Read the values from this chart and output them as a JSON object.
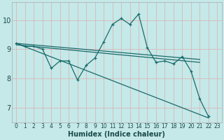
{
  "xlabel": "Humidex (Indice chaleur)",
  "bg_color": "#c5e8e8",
  "grid_color": "#d8b8b8",
  "line_color": "#1a6b6b",
  "xlim": [
    -0.5,
    23.5
  ],
  "ylim": [
    6.5,
    10.6
  ],
  "yticks": [
    7,
    8,
    9,
    10
  ],
  "xticks": [
    0,
    1,
    2,
    3,
    4,
    5,
    6,
    7,
    8,
    9,
    10,
    11,
    12,
    13,
    14,
    15,
    16,
    17,
    18,
    19,
    20,
    21,
    22,
    23
  ],
  "lines": [
    {
      "x": [
        0,
        1,
        2,
        3,
        4,
        5,
        6,
        7,
        8,
        9,
        10,
        11,
        12,
        13,
        14,
        15,
        16,
        17,
        18,
        19,
        20,
        21,
        22
      ],
      "y": [
        9.2,
        9.1,
        9.1,
        9.0,
        8.35,
        8.6,
        8.6,
        7.95,
        8.45,
        8.7,
        9.25,
        9.85,
        10.05,
        9.85,
        10.2,
        9.05,
        8.55,
        8.6,
        8.5,
        8.75,
        8.25,
        7.3,
        6.7
      ],
      "marker": true
    },
    {
      "x": [
        0,
        21
      ],
      "y": [
        9.2,
        8.65
      ],
      "marker": false
    },
    {
      "x": [
        0,
        21
      ],
      "y": [
        9.15,
        8.55
      ],
      "marker": false
    },
    {
      "x": [
        0,
        22
      ],
      "y": [
        9.2,
        6.65
      ],
      "marker": false
    }
  ]
}
